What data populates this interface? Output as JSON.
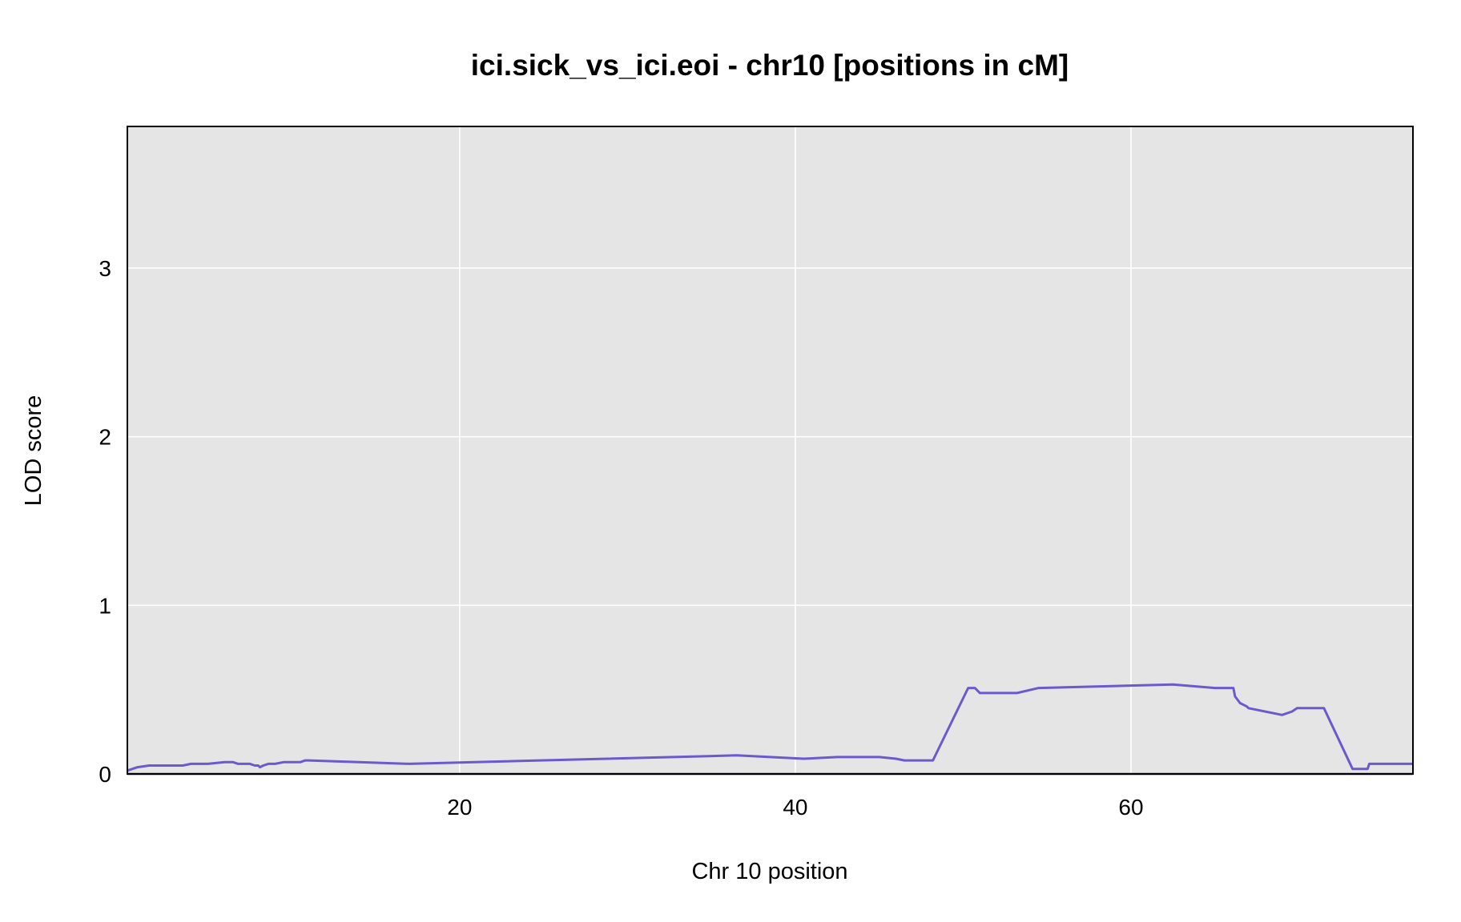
{
  "chart_data": {
    "type": "line",
    "title": "ici.sick_vs_ici.eoi - chr10 [positions in cM]",
    "xlabel": "Chr 10 position",
    "ylabel": "LOD score",
    "xlim": [
      0.2,
      76.8
    ],
    "ylim": [
      0,
      3.84
    ],
    "xticks": [
      20,
      40,
      60
    ],
    "yticks": [
      0,
      1,
      2,
      3
    ],
    "grid": true,
    "colors": {
      "panel": "#e5e5e5",
      "grid": "#ffffff",
      "line": "#6a5acd",
      "baseline": "#1a0f7a",
      "frame": "#000000"
    },
    "series": [
      {
        "x": [
          0.2,
          0.8,
          1.5,
          3.2,
          3.5,
          4.0,
          5.0,
          6.0,
          6.5,
          6.8,
          7.5,
          7.8,
          8.0,
          8.1,
          8.3,
          8.6,
          9.0,
          9.5,
          10.5,
          10.8,
          11.0,
          14.0,
          17.0,
          36.5,
          40.5,
          42.5,
          45.0,
          46.0,
          46.5,
          48.2,
          50.3,
          50.7,
          51.0,
          53.2,
          54.5,
          62.5,
          65.0,
          66.1,
          66.2,
          66.5,
          66.9,
          67.0,
          69.0,
          69.6,
          69.9,
          71.5,
          73.2,
          73.6,
          73.8,
          74.1,
          74.2,
          76.8
        ],
        "values": [
          0.02,
          0.04,
          0.05,
          0.05,
          0.05,
          0.06,
          0.06,
          0.07,
          0.07,
          0.06,
          0.06,
          0.05,
          0.05,
          0.04,
          0.05,
          0.06,
          0.06,
          0.07,
          0.07,
          0.08,
          0.08,
          0.07,
          0.06,
          0.11,
          0.09,
          0.1,
          0.1,
          0.09,
          0.08,
          0.08,
          0.51,
          0.51,
          0.48,
          0.48,
          0.51,
          0.53,
          0.51,
          0.51,
          0.46,
          0.42,
          0.4,
          0.39,
          0.35,
          0.37,
          0.39,
          0.39,
          0.03,
          0.03,
          0.03,
          0.03,
          0.06,
          0.06
        ]
      }
    ]
  }
}
